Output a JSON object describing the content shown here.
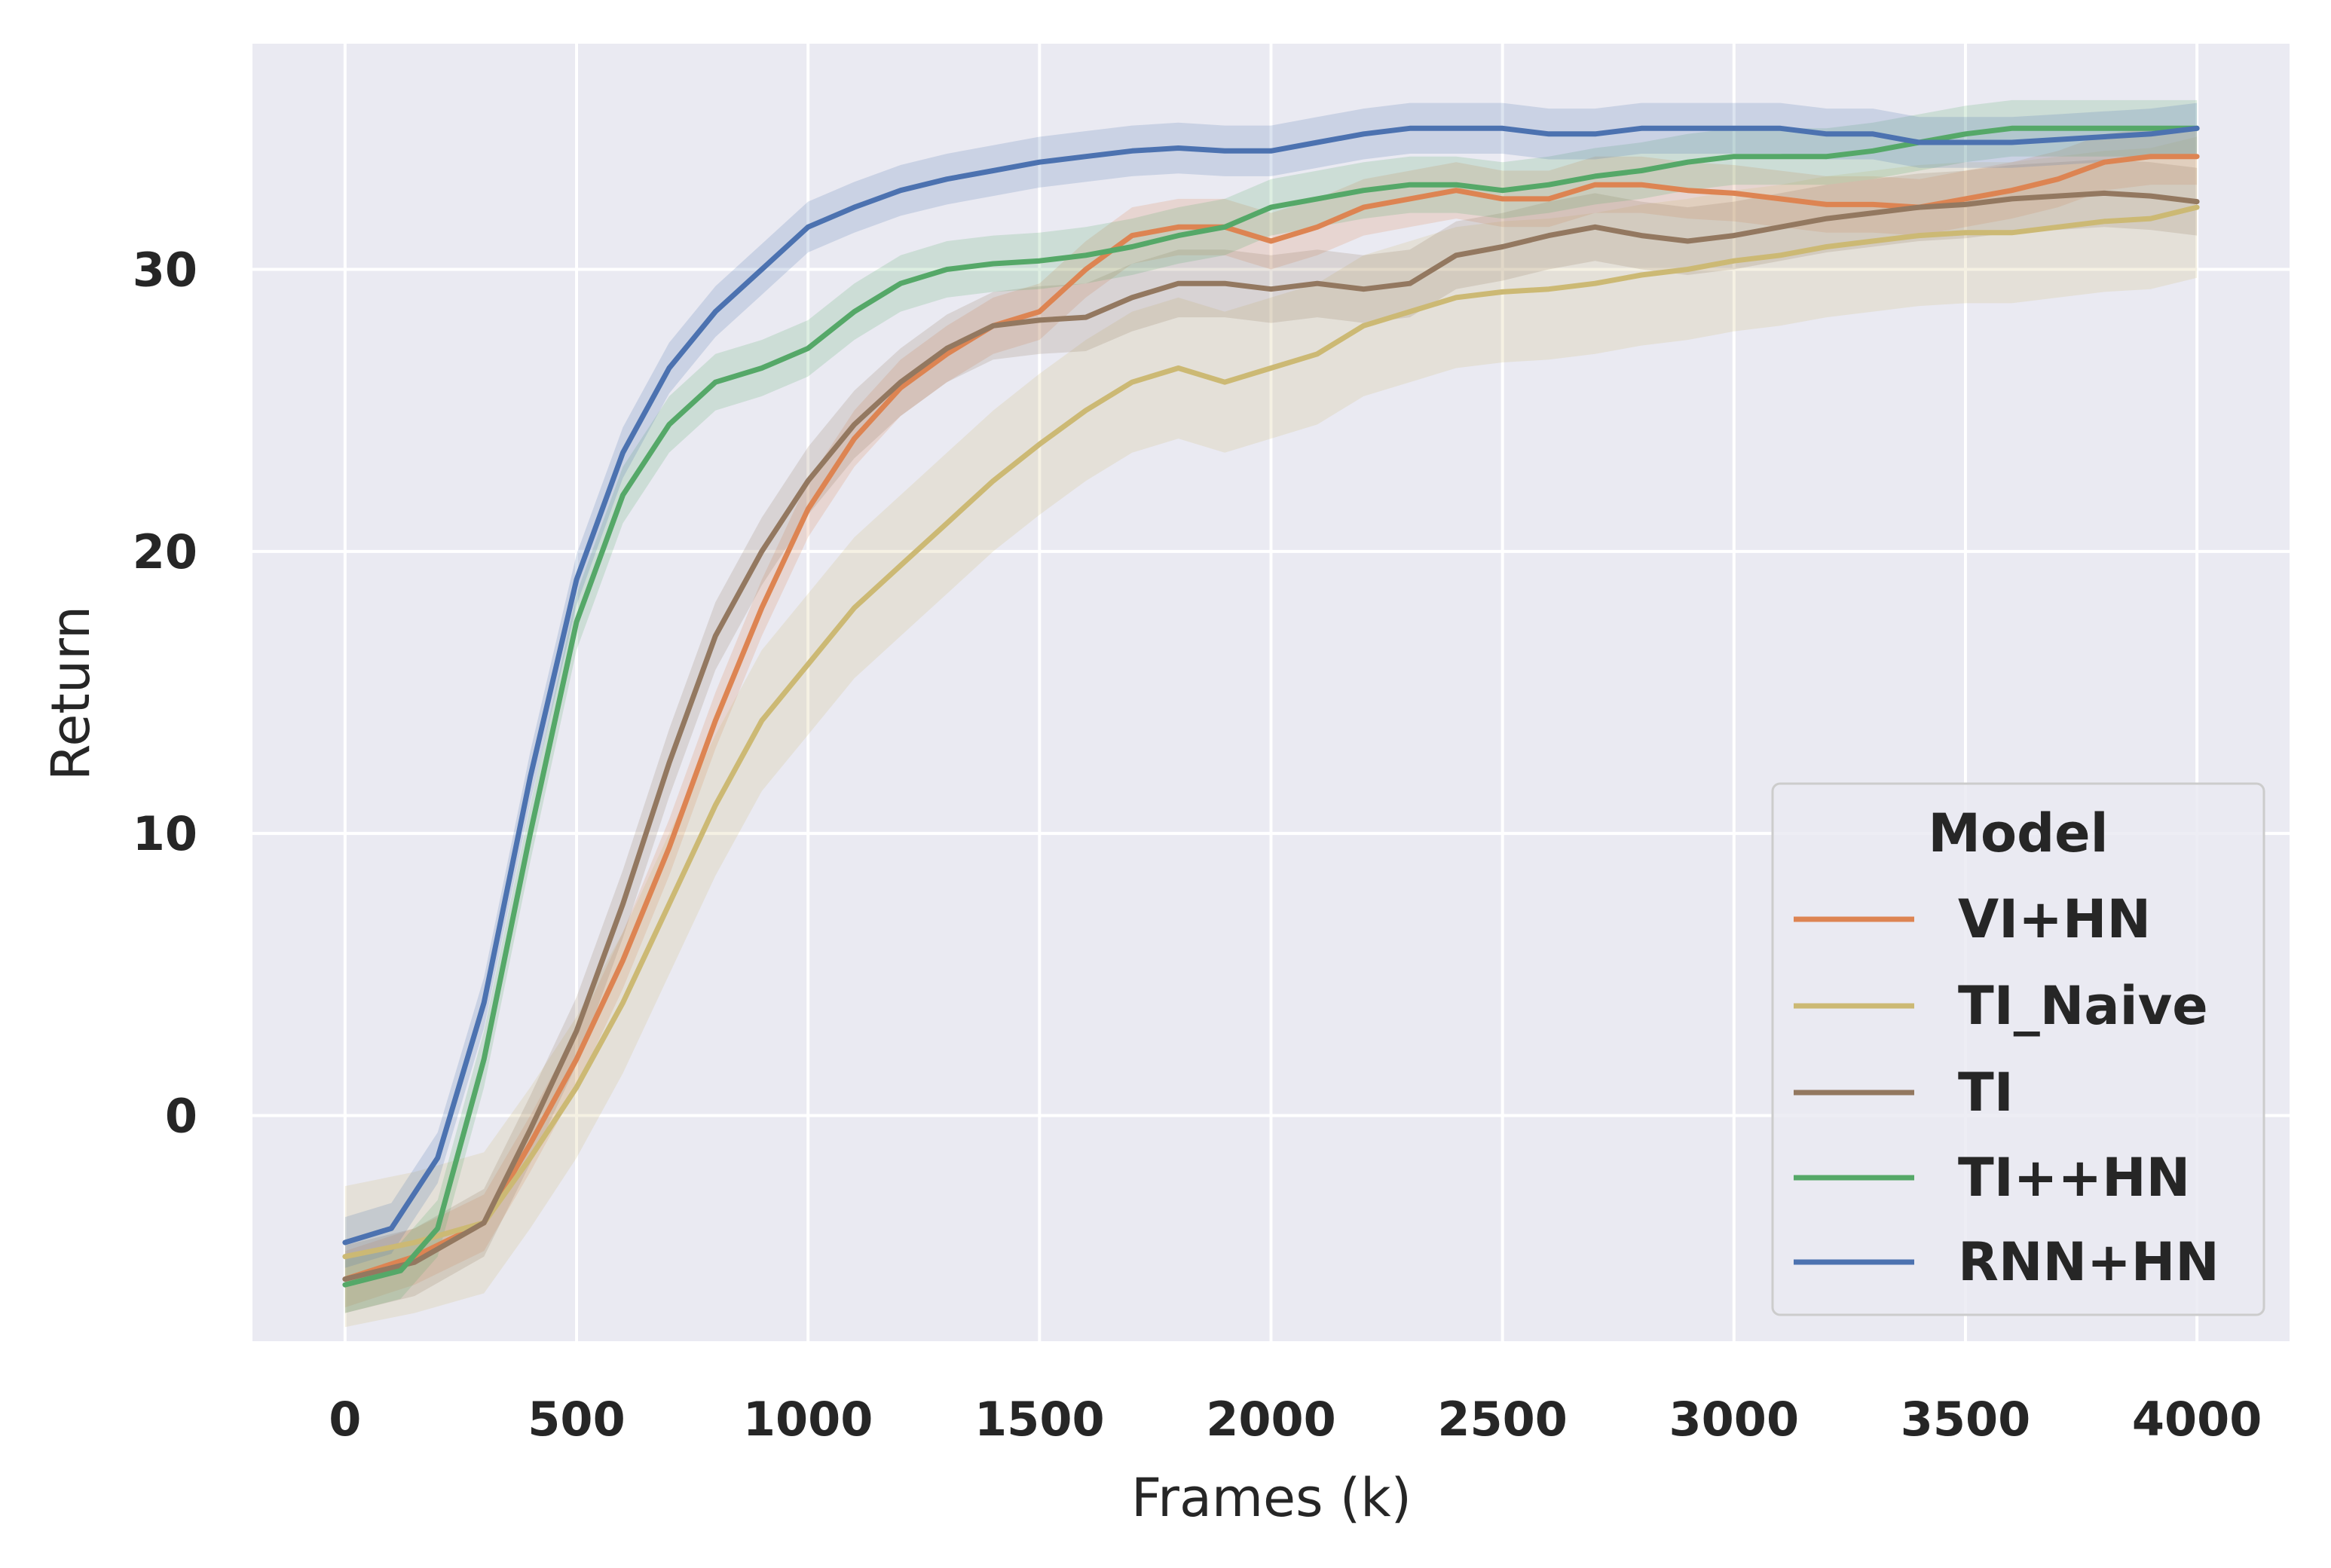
{
  "chart_data": {
    "type": "line",
    "title": "",
    "xlabel": "Frames (k)",
    "ylabel": "Return",
    "xlim": [
      -200,
      4200
    ],
    "ylim": [
      -8,
      38
    ],
    "xticks": [
      0,
      500,
      1000,
      1500,
      2000,
      2500,
      3000,
      3500,
      4000
    ],
    "yticks": [
      0,
      10,
      20,
      30
    ],
    "grid": true,
    "legend": {
      "title": "Model",
      "placement": "lower-right"
    },
    "series": [
      {
        "name": "VI+HN",
        "color": "#dd8452",
        "x": [
          0,
          150,
          300,
          400,
          500,
          600,
          700,
          800,
          900,
          1000,
          1100,
          1200,
          1300,
          1400,
          1500,
          1600,
          1700,
          1800,
          1900,
          2000,
          2100,
          2200,
          2300,
          2400,
          2500,
          2600,
          2700,
          2800,
          2900,
          3000,
          3100,
          3200,
          3300,
          3400,
          3500,
          3600,
          3700,
          3800,
          3900,
          4000
        ],
        "y": [
          -5.8,
          -5.0,
          -3.8,
          -1.0,
          2.0,
          5.5,
          9.5,
          14.0,
          18.0,
          21.5,
          24.0,
          25.8,
          27.0,
          28.0,
          28.5,
          30.0,
          31.2,
          31.5,
          31.5,
          31.0,
          31.5,
          32.2,
          32.5,
          32.8,
          32.5,
          32.5,
          33.0,
          33.0,
          32.8,
          32.7,
          32.5,
          32.3,
          32.3,
          32.2,
          32.5,
          32.8,
          33.2,
          33.8,
          34.0,
          34.0
        ],
        "band": 1.0
      },
      {
        "name": "TI_Naive",
        "color": "#ccb974",
        "x": [
          0,
          150,
          300,
          400,
          500,
          600,
          700,
          800,
          900,
          1000,
          1100,
          1200,
          1300,
          1400,
          1500,
          1600,
          1700,
          1800,
          1900,
          2000,
          2100,
          2200,
          2300,
          2400,
          2500,
          2600,
          2700,
          2800,
          2900,
          3000,
          3100,
          3200,
          3300,
          3400,
          3500,
          3600,
          3700,
          3800,
          3900,
          4000
        ],
        "y": [
          -5.0,
          -4.5,
          -3.8,
          -1.5,
          1.0,
          4.0,
          7.5,
          11.0,
          14.0,
          16.0,
          18.0,
          19.5,
          21.0,
          22.5,
          23.8,
          25.0,
          26.0,
          26.5,
          26.0,
          26.5,
          27.0,
          28.0,
          28.5,
          29.0,
          29.2,
          29.3,
          29.5,
          29.8,
          30.0,
          30.3,
          30.5,
          30.8,
          31.0,
          31.2,
          31.3,
          31.3,
          31.5,
          31.7,
          31.8,
          32.2
        ],
        "band": 2.5
      },
      {
        "name": "TI",
        "color": "#937860",
        "x": [
          0,
          150,
          300,
          400,
          500,
          600,
          700,
          800,
          900,
          1000,
          1100,
          1200,
          1300,
          1400,
          1500,
          1600,
          1700,
          1800,
          1900,
          2000,
          2100,
          2200,
          2300,
          2400,
          2500,
          2600,
          2700,
          2800,
          2900,
          3000,
          3100,
          3200,
          3300,
          3400,
          3500,
          3600,
          3700,
          3800,
          3900,
          4000
        ],
        "y": [
          -5.8,
          -5.2,
          -3.8,
          -0.5,
          3.0,
          7.5,
          12.5,
          17.0,
          20.0,
          22.5,
          24.5,
          26.0,
          27.2,
          28.0,
          28.2,
          28.3,
          29.0,
          29.5,
          29.5,
          29.3,
          29.5,
          29.3,
          29.5,
          30.5,
          30.8,
          31.2,
          31.5,
          31.2,
          31.0,
          31.2,
          31.5,
          31.8,
          32.0,
          32.2,
          32.3,
          32.5,
          32.6,
          32.7,
          32.6,
          32.4
        ],
        "band": 1.2
      },
      {
        "name": "TI++HN",
        "color": "#55a868",
        "x": [
          0,
          120,
          200,
          300,
          400,
          500,
          600,
          700,
          800,
          900,
          1000,
          1100,
          1200,
          1300,
          1400,
          1500,
          1600,
          1700,
          1800,
          1900,
          2000,
          2100,
          2200,
          2300,
          2400,
          2500,
          2600,
          2700,
          2800,
          2900,
          3000,
          3100,
          3200,
          3300,
          3400,
          3500,
          3600,
          3700,
          3800,
          3900,
          4000
        ],
        "y": [
          -6.0,
          -5.5,
          -4.0,
          2.0,
          10.0,
          17.5,
          22.0,
          24.5,
          26.0,
          26.5,
          27.2,
          28.5,
          29.5,
          30.0,
          30.2,
          30.3,
          30.5,
          30.8,
          31.2,
          31.5,
          32.2,
          32.5,
          32.8,
          33.0,
          33.0,
          32.8,
          33.0,
          33.3,
          33.5,
          33.8,
          34.0,
          34.0,
          34.0,
          34.2,
          34.5,
          34.8,
          35.0,
          35.0,
          35.0,
          35.0,
          35.0
        ],
        "band": 1.0
      },
      {
        "name": "RNN+HN",
        "color": "#4c72b0",
        "x": [
          0,
          100,
          200,
          300,
          400,
          500,
          600,
          700,
          800,
          900,
          1000,
          1100,
          1200,
          1300,
          1400,
          1500,
          1600,
          1700,
          1800,
          1900,
          2000,
          2100,
          2200,
          2300,
          2400,
          2500,
          2600,
          2700,
          2800,
          2900,
          3000,
          3100,
          3200,
          3300,
          3400,
          3500,
          3600,
          3700,
          3800,
          3900,
          4000
        ],
        "y": [
          -4.5,
          -4.0,
          -1.5,
          4.0,
          12.0,
          19.0,
          23.5,
          26.5,
          28.5,
          30.0,
          31.5,
          32.2,
          32.8,
          33.2,
          33.5,
          33.8,
          34.0,
          34.2,
          34.3,
          34.2,
          34.2,
          34.5,
          34.8,
          35.0,
          35.0,
          35.0,
          34.8,
          34.8,
          35.0,
          35.0,
          35.0,
          35.0,
          34.8,
          34.8,
          34.5,
          34.5,
          34.5,
          34.6,
          34.7,
          34.8,
          35.0
        ],
        "band": 0.9
      }
    ]
  }
}
